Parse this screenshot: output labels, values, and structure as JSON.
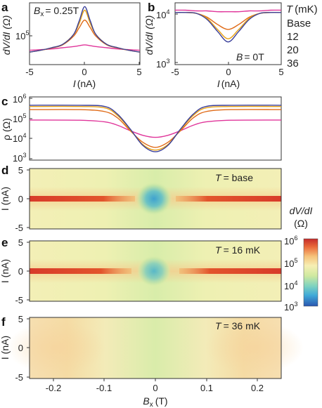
{
  "panels": {
    "a": {
      "label": "a",
      "annotation_var": "B",
      "annotation_sub": "x",
      "annotation_val": "= 0.25T",
      "xlabel_var": "I",
      "xlabel_unit": "(nA)",
      "ylabel": "dV/dI (Ω)",
      "xticks": [
        "-5",
        "0",
        "5"
      ],
      "ytick_base": "10",
      "ytick_exp": "5"
    },
    "b": {
      "label": "b",
      "annotation_var": "B",
      "annotation_val": "= 0T",
      "xlabel_var": "I",
      "xlabel_unit": "(nA)",
      "ylabel": "dV/dI (Ω)",
      "xticks": [
        "-5",
        "0",
        "5"
      ],
      "yticks": [
        {
          "base": "10",
          "exp": "4"
        },
        {
          "base": "10",
          "exp": "3"
        }
      ]
    },
    "c": {
      "label": "c",
      "ylabel": "ρ (Ω)",
      "yticks": [
        {
          "base": "10",
          "exp": "6"
        },
        {
          "base": "10",
          "exp": "5"
        },
        {
          "base": "10",
          "exp": "4"
        },
        {
          "base": "10",
          "exp": "3"
        }
      ]
    },
    "d": {
      "label": "d",
      "annotation_var": "T",
      "annotation_val": "= base",
      "ylabel": "I (nA)",
      "yticks": [
        "5",
        "0",
        "-5"
      ]
    },
    "e": {
      "label": "e",
      "annotation_var": "T",
      "annotation_val": "= 16 mK",
      "ylabel": "I (nA)",
      "yticks": [
        "5",
        "0",
        "-5"
      ]
    },
    "f": {
      "label": "f",
      "annotation_var": "T",
      "annotation_val": "= 36 mK",
      "ylabel": "I (nA)",
      "yticks": [
        "5",
        "0",
        "-5"
      ],
      "xticks": [
        "-0.2",
        "-0.1",
        "0",
        "0.1",
        "0.2"
      ],
      "xlabel_var": "B",
      "xlabel_sub": "x",
      "xlabel_unit": "(T)"
    }
  },
  "legend": {
    "title": "T (mK)",
    "entries": [
      {
        "label": "Base",
        "color": "#3a3f9a"
      },
      {
        "label": "12",
        "color": "#e8a317"
      },
      {
        "label": "20",
        "color": "#e06a16"
      },
      {
        "label": "36",
        "color": "#e0359a"
      }
    ]
  },
  "colorbar": {
    "title": "dV/dI",
    "unit": "(Ω)",
    "ticks": [
      {
        "base": "10",
        "exp": "6"
      },
      {
        "base": "10",
        "exp": "5"
      },
      {
        "base": "10",
        "exp": "4"
      },
      {
        "base": "10",
        "exp": "3"
      }
    ],
    "colormap": [
      "#2a56b0",
      "#3fa9d8",
      "#7fd3c0",
      "#cfe9a0",
      "#f6efb4",
      "#f6c27a",
      "#ea6a3a",
      "#c42a2a"
    ]
  },
  "chart_data": [
    {
      "type": "line",
      "panel": "a",
      "xlabel": "I (nA)",
      "ylabel": "dV/dI (Ω)",
      "xlim": [
        -5,
        5
      ],
      "yscale": "log",
      "ylim": [
        30000,
        600000
      ],
      "x": [
        -5,
        -4,
        -3,
        -2,
        -1,
        -0.5,
        0,
        0.5,
        1,
        2,
        3,
        4,
        5
      ],
      "series": [
        {
          "name": "Base",
          "values": [
            55000,
            60000,
            68000,
            80000,
            130000,
            250000,
            500000,
            250000,
            130000,
            80000,
            68000,
            60000,
            55000
          ]
        },
        {
          "name": "12",
          "values": [
            55000,
            60000,
            68000,
            80000,
            130000,
            220000,
            420000,
            220000,
            130000,
            80000,
            68000,
            60000,
            55000
          ]
        },
        {
          "name": "20",
          "values": [
            55000,
            60000,
            67000,
            78000,
            120000,
            180000,
            260000,
            180000,
            120000,
            78000,
            67000,
            60000,
            55000
          ]
        },
        {
          "name": "36",
          "values": [
            60000,
            62000,
            64000,
            68000,
            72000,
            75000,
            78000,
            75000,
            72000,
            68000,
            64000,
            62000,
            60000
          ]
        }
      ]
    },
    {
      "type": "line",
      "panel": "b",
      "xlabel": "I (nA)",
      "ylabel": "dV/dI (Ω)",
      "xlim": [
        -5,
        5
      ],
      "yscale": "log",
      "ylim": [
        1000,
        20000
      ],
      "x": [
        -5,
        -4,
        -3,
        -2,
        -1,
        0,
        1,
        2,
        3,
        4,
        5
      ],
      "series": [
        {
          "name": "Base",
          "values": [
            12500,
            12500,
            12000,
            9000,
            5000,
            3000,
            5000,
            9000,
            12000,
            12500,
            12500
          ]
        },
        {
          "name": "12",
          "values": [
            12500,
            12500,
            12000,
            9500,
            5500,
            3500,
            5500,
            9500,
            12000,
            12500,
            12500
          ]
        },
        {
          "name": "20",
          "values": [
            12500,
            12500,
            12000,
            10000,
            7000,
            5500,
            7000,
            10000,
            12000,
            12500,
            12500
          ]
        },
        {
          "name": "36",
          "values": [
            14000,
            14000,
            13500,
            13500,
            13000,
            13000,
            13000,
            13500,
            13500,
            14000,
            14000
          ]
        }
      ]
    },
    {
      "type": "line",
      "panel": "c",
      "xlabel": "Bx (T)",
      "ylabel": "ρ (Ω)",
      "xlim": [
        -0.25,
        0.25
      ],
      "yscale": "log",
      "ylim": [
        1000,
        1000000
      ],
      "x": [
        -0.25,
        -0.15,
        -0.1,
        -0.075,
        -0.05,
        -0.025,
        0,
        0.025,
        0.05,
        0.075,
        0.1,
        0.15,
        0.25
      ],
      "series": [
        {
          "name": "Base",
          "values": [
            400000,
            400000,
            350000,
            150000,
            30000,
            5000,
            2500,
            5000,
            30000,
            150000,
            350000,
            400000,
            400000
          ]
        },
        {
          "name": "12",
          "values": [
            350000,
            350000,
            300000,
            130000,
            28000,
            5500,
            3000,
            5500,
            28000,
            130000,
            300000,
            350000,
            350000
          ]
        },
        {
          "name": "20",
          "values": [
            250000,
            250000,
            200000,
            100000,
            25000,
            7000,
            4000,
            7000,
            25000,
            100000,
            200000,
            250000,
            250000
          ]
        },
        {
          "name": "36",
          "values": [
            80000,
            78000,
            65000,
            45000,
            25000,
            15000,
            12000,
            15000,
            25000,
            45000,
            65000,
            78000,
            80000
          ]
        }
      ]
    },
    {
      "type": "heatmap",
      "panel": "d",
      "xlabel": "Bx (T)",
      "ylabel": "I (nA)",
      "xlim": [
        -0.25,
        0.25
      ],
      "ylim": [
        -5,
        5
      ],
      "zscale": "log",
      "zlim": [
        1000,
        1000000
      ],
      "temperature": "base"
    },
    {
      "type": "heatmap",
      "panel": "e",
      "xlabel": "Bx (T)",
      "ylabel": "I (nA)",
      "xlim": [
        -0.25,
        0.25
      ],
      "ylim": [
        -5,
        5
      ],
      "zscale": "log",
      "zlim": [
        1000,
        1000000
      ],
      "temperature": "16 mK"
    },
    {
      "type": "heatmap",
      "panel": "f",
      "xlabel": "Bx (T)",
      "ylabel": "I (nA)",
      "xlim": [
        -0.25,
        0.25
      ],
      "ylim": [
        -5,
        5
      ],
      "zscale": "log",
      "zlim": [
        1000,
        1000000
      ],
      "temperature": "36 mK"
    }
  ]
}
